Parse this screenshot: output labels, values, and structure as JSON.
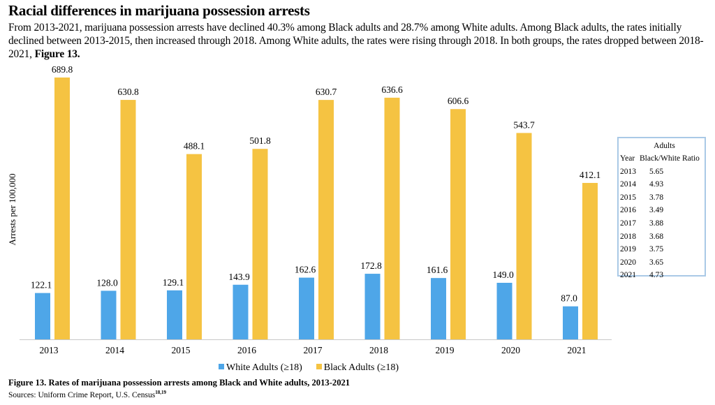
{
  "header": {
    "title": "Racial differences in marijuana possession arrests",
    "paragraph": "From 2013-2021, marijuana possession arrests  have declined 40.3% among Black adults and 28.7% among White adults. Among Black adults, the rates initially declined between 2013-2015, then increased through 2018. Among White adults, the rates were rising through 2018. In both groups, the rates dropped between 2018-2021, ",
    "paragraph_bold": "Figure 13."
  },
  "chart_data": {
    "type": "bar",
    "categories": [
      "2013",
      "2014",
      "2015",
      "2016",
      "2017",
      "2018",
      "2019",
      "2020",
      "2021"
    ],
    "series": [
      {
        "name": "White Adults (≥18)",
        "color": "#4ea6e8",
        "values": [
          122.1,
          128.0,
          129.1,
          143.9,
          162.6,
          172.8,
          161.6,
          149.0,
          87.0
        ]
      },
      {
        "name": "Black Adults (≥18)",
        "color": "#f5c342",
        "values": [
          689.8,
          630.8,
          488.1,
          501.8,
          630.7,
          636.6,
          606.6,
          543.7,
          412.1
        ]
      }
    ],
    "value_labels": true,
    "ylabel": "Arrests per 100,000",
    "xlabel": "",
    "ylim": [
      0,
      700
    ],
    "grid": false,
    "legend": "bottom"
  },
  "ratio_table": {
    "title": "Adults",
    "headers": [
      "Year",
      "Black/White Ratio"
    ],
    "rows": [
      [
        "2013",
        "5.65"
      ],
      [
        "2014",
        "4.93"
      ],
      [
        "2015",
        "3.78"
      ],
      [
        "2016",
        "3.49"
      ],
      [
        "2017",
        "3.88"
      ],
      [
        "2018",
        "3.68"
      ],
      [
        "2019",
        "3.75"
      ],
      [
        "2020",
        "3.65"
      ],
      [
        "2021",
        "4.73"
      ]
    ]
  },
  "caption": "Figure 13.  Rates of marijuana possession arrests among Black and White adults, 2013-2021",
  "source": "Sources: Uniform Crime Report, U.S. Census",
  "source_refs": "18,19"
}
